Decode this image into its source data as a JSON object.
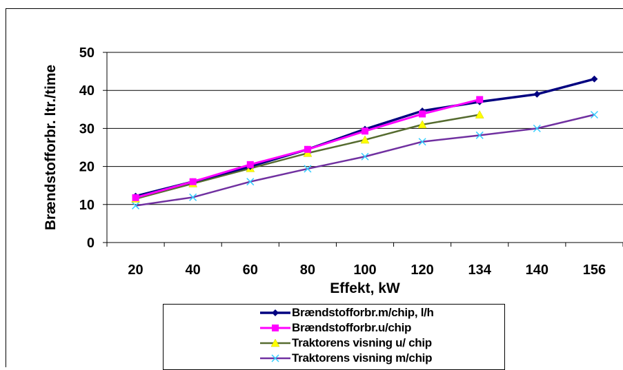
{
  "chart_data": {
    "type": "line",
    "categories": [
      "20",
      "40",
      "60",
      "80",
      "100",
      "120",
      "134",
      "140",
      "156"
    ],
    "xlabel": "Effekt, kW",
    "ylabel": "Brændstofforbr. ltr./time",
    "ylim": [
      0,
      50
    ],
    "yticks": [
      "0",
      "10",
      "20",
      "30",
      "40",
      "50"
    ],
    "grid": true,
    "legend_position": "bottom",
    "series": [
      {
        "name": "Brændstofforbr.m/chip, l/h",
        "color": "#000080",
        "marker": "diamond",
        "values": [
          12.2,
          16.0,
          20.0,
          24.5,
          29.8,
          34.6,
          37.0,
          39.0,
          43.0
        ]
      },
      {
        "name": "Brændstofforbr.u/chip",
        "color": "#ff00ff",
        "marker": "square",
        "values": [
          11.8,
          16.0,
          20.5,
          24.5,
          29.3,
          33.8,
          37.6,
          null,
          null
        ]
      },
      {
        "name": "Traktorens visning u/ chip",
        "color": "#556b2f",
        "marker": "triangle",
        "values": [
          11.5,
          15.5,
          19.5,
          23.5,
          27.0,
          31.0,
          33.6,
          null,
          null
        ]
      },
      {
        "name": "Traktorens visning m/chip",
        "color": "#7030a0",
        "marker": "x",
        "values": [
          9.7,
          11.9,
          16.0,
          19.4,
          22.6,
          26.5,
          28.2,
          30.0,
          33.6
        ]
      }
    ]
  }
}
